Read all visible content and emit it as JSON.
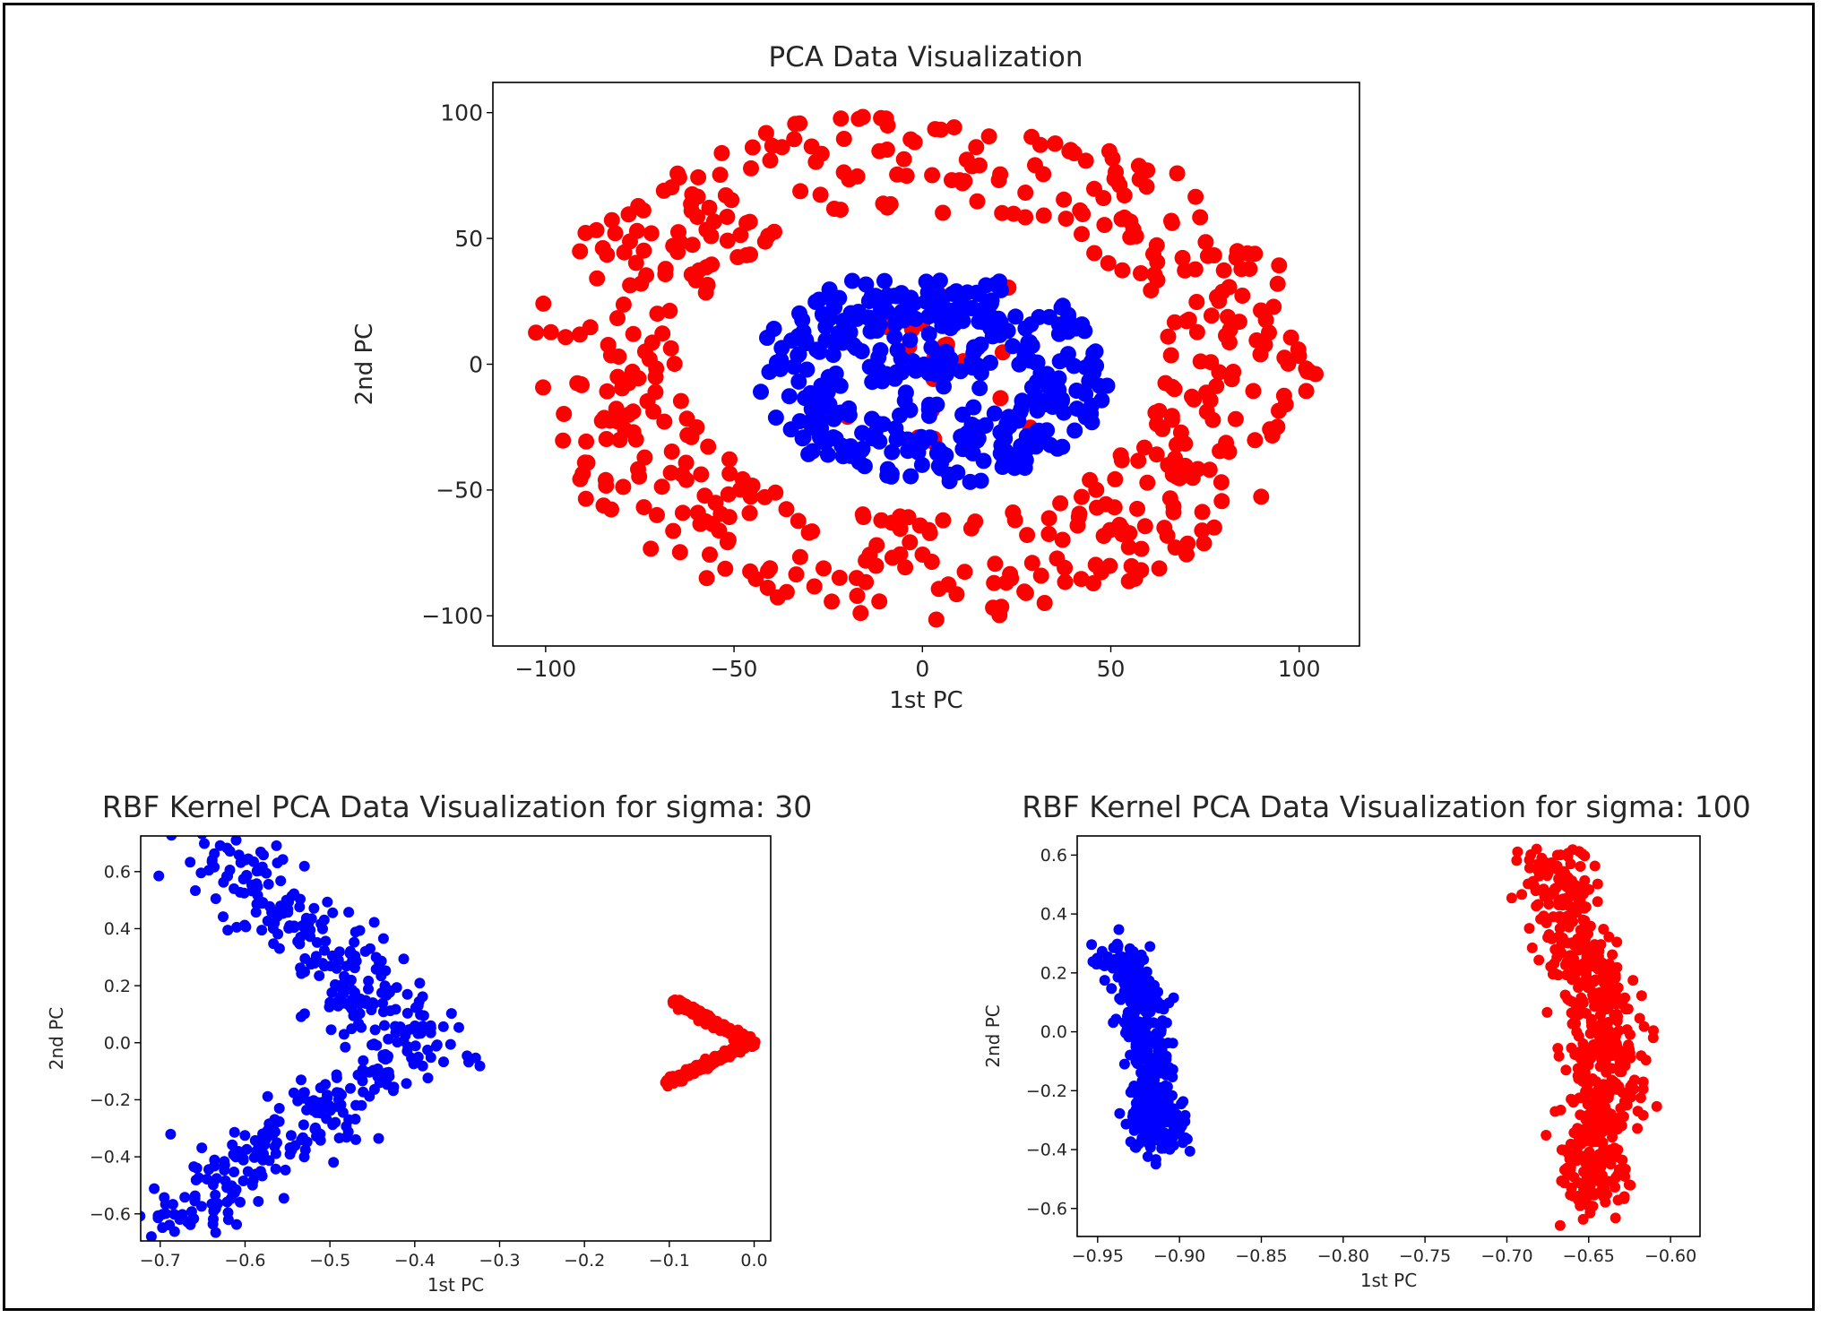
{
  "figure": {
    "colors": {
      "class_a": "#0000ff",
      "class_b": "#ff0000",
      "axes": "#000000",
      "text": "#262626"
    }
  },
  "chart_data": [
    {
      "id": "pca",
      "type": "scatter",
      "title": "PCA Data Visualization",
      "xlabel": "1st PC",
      "ylabel": "2nd PC",
      "xlim": [
        -114,
        116
      ],
      "ylim": [
        -112,
        112
      ],
      "xticks": [
        -100,
        -50,
        0,
        50,
        100
      ],
      "yticks": [
        -100,
        -50,
        0,
        50,
        100
      ],
      "xtick_labels": [
        "−100",
        "−50",
        "0",
        "50",
        "100"
      ],
      "ytick_labels": [
        "−100",
        "−50",
        "0",
        "50",
        "100"
      ],
      "grid": false,
      "series": [
        {
          "color": "#ff0000",
          "shape": "ring",
          "center": [
            0,
            0
          ],
          "radius_x": [
            65,
            105
          ],
          "radius_y": [
            60,
            102
          ],
          "count": 500
        },
        {
          "color": "#ff0000",
          "shape": "disk",
          "center": [
            5,
            0
          ],
          "radius_x": [
            0,
            30
          ],
          "radius_y": [
            0,
            45
          ],
          "count": 25
        },
        {
          "color": "#0000ff",
          "shape": "ring",
          "center": [
            3,
            -5
          ],
          "radius_x": [
            25,
            48
          ],
          "radius_y": [
            22,
            43
          ],
          "count": 300
        },
        {
          "color": "#0000ff",
          "shape": "disk",
          "center": [
            5,
            0
          ],
          "radius_x": [
            0,
            28
          ],
          "radius_y": [
            0,
            30
          ],
          "count": 100
        }
      ]
    },
    {
      "id": "rbf30",
      "type": "scatter",
      "title": "RBF Kernel PCA Data Visualization for sigma: 30",
      "xlabel": "1st PC",
      "ylabel": "2nd PC",
      "xlim": [
        -0.723,
        0.0195
      ],
      "ylim": [
        -0.695,
        0.725
      ],
      "xticks": [
        -0.7,
        -0.6,
        -0.5,
        -0.4,
        -0.3,
        -0.2,
        -0.1,
        0.0
      ],
      "yticks": [
        -0.6,
        -0.4,
        -0.2,
        0.0,
        0.2,
        0.4,
        0.6
      ],
      "xtick_labels": [
        "−0.7",
        "−0.6",
        "−0.5",
        "−0.4",
        "−0.3",
        "−0.2",
        "−0.1",
        "0.0"
      ],
      "ytick_labels": [
        "−0.6",
        "−0.4",
        "−0.2",
        "0.0",
        "0.2",
        "0.4",
        "0.6"
      ],
      "grid": false,
      "series": [
        {
          "color": "#0000ff",
          "shape": "chevron",
          "tip": [
            -0.4,
            0.0
          ],
          "top": [
            -0.63,
            0.67
          ],
          "bottom": [
            -0.69,
            -0.65
          ],
          "spread_x": 0.035,
          "spread_y": 0.04,
          "count": 450
        },
        {
          "color": "#ff0000",
          "shape": "chevron",
          "tip": [
            -0.005,
            0.0
          ],
          "top": [
            -0.095,
            0.15
          ],
          "bottom": [
            -0.1,
            -0.14
          ],
          "spread_x": 0.004,
          "spread_y": 0.005,
          "count": 500
        }
      ]
    },
    {
      "id": "rbf100",
      "type": "scatter",
      "title": "RBF Kernel PCA Data Visualization for sigma: 100",
      "xlabel": "1st PC",
      "ylabel": "2nd PC",
      "xlim": [
        -0.9625,
        -0.582
      ],
      "ylim": [
        -0.695,
        0.665
      ],
      "xticks": [
        -0.95,
        -0.9,
        -0.85,
        -0.8,
        -0.75,
        -0.7,
        -0.65,
        -0.6
      ],
      "yticks": [
        -0.6,
        -0.4,
        -0.2,
        0.0,
        0.2,
        0.4,
        0.6
      ],
      "xtick_labels": [
        "−0.95",
        "−0.90",
        "−0.85",
        "−0.80",
        "−0.75",
        "−0.70",
        "−0.65",
        "−0.60"
      ],
      "ytick_labels": [
        "−0.6",
        "−0.4",
        "−0.2",
        "0.0",
        "0.2",
        "0.4",
        "0.6"
      ],
      "grid": false,
      "series": [
        {
          "color": "#0000ff",
          "shape": "band",
          "points": [
            [
              -0.935,
              0.28
            ],
            [
              -0.925,
              0.1
            ],
            [
              -0.918,
              -0.1
            ],
            [
              -0.915,
              -0.3
            ],
            [
              -0.91,
              -0.37
            ]
          ],
          "spread_x": 0.008,
          "spread_y": 0.04,
          "count": 420
        },
        {
          "color": "#ff0000",
          "shape": "band",
          "points": [
            [
              -0.675,
              0.6
            ],
            [
              -0.665,
              0.4
            ],
            [
              -0.65,
              0.2
            ],
            [
              -0.64,
              0.0
            ],
            [
              -0.64,
              -0.2
            ],
            [
              -0.645,
              -0.4
            ],
            [
              -0.645,
              -0.62
            ]
          ],
          "spread_x": 0.011,
          "spread_y": 0.03,
          "count": 620
        }
      ]
    }
  ]
}
